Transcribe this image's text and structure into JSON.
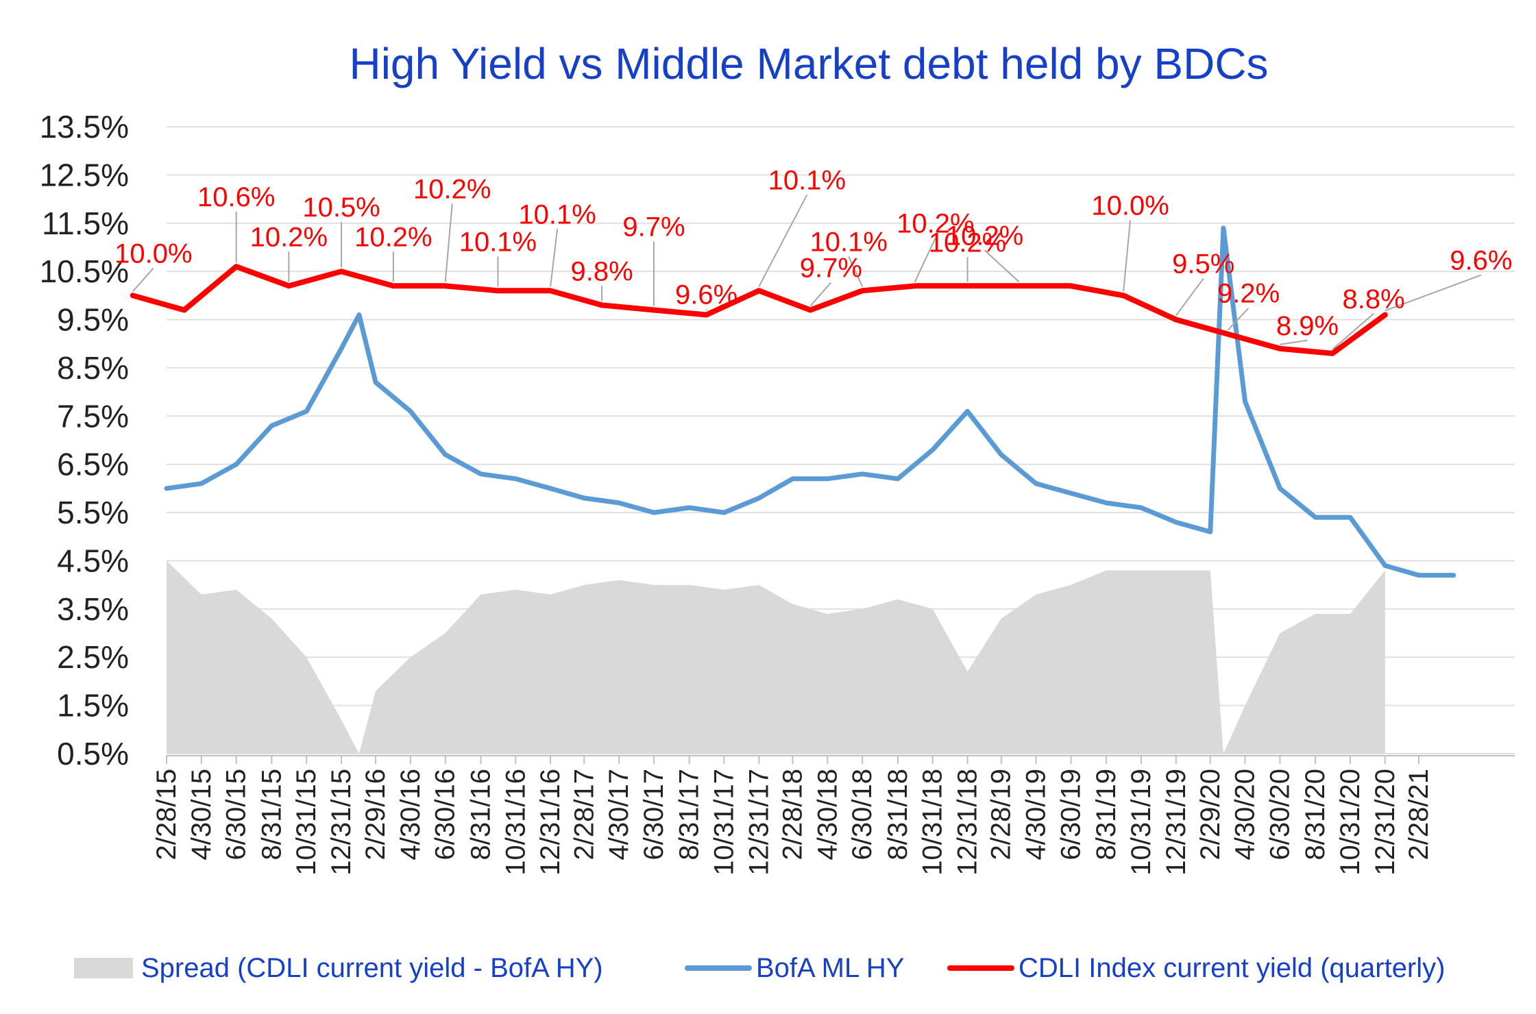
{
  "chart_data": {
    "type": "line",
    "title": "High Yield  vs  Middle Market debt held by BDCs",
    "xlabel": "",
    "ylabel": "",
    "ylim": [
      0.5,
      13.5
    ],
    "y_ticks": [
      "13.5%",
      "12.5%",
      "11.5%",
      "10.5%",
      "9.5%",
      "8.5%",
      "7.5%",
      "6.5%",
      "5.5%",
      "4.5%",
      "3.5%",
      "2.5%",
      "1.5%",
      "0.5%"
    ],
    "x_ticks": [
      "2/28/15",
      "4/30/15",
      "6/30/15",
      "8/31/15",
      "10/31/15",
      "12/31/15",
      "2/29/16",
      "4/30/16",
      "6/30/16",
      "8/31/16",
      "10/31/16",
      "12/31/16",
      "2/28/17",
      "4/30/17",
      "6/30/17",
      "8/31/17",
      "10/31/17",
      "12/31/17",
      "2/28/18",
      "4/30/18",
      "6/30/18",
      "8/31/18",
      "10/31/18",
      "12/31/18",
      "2/28/19",
      "4/30/19",
      "6/30/19",
      "8/31/19",
      "10/31/19",
      "12/31/19",
      "2/29/20",
      "4/30/20",
      "6/30/20",
      "8/31/20",
      "10/31/20",
      "12/31/20",
      "2/28/21"
    ],
    "grid": true,
    "legend_position": "bottom",
    "series": [
      {
        "name": "Spread (CDLI current yield - BofA HY)",
        "type": "area",
        "color": "#d9d9d9",
        "x": [
          "2/28/15",
          "4/30/15",
          "6/30/15",
          "8/31/15",
          "10/31/15",
          "12/31/15",
          "1/31/16",
          "2/29/16",
          "4/30/16",
          "6/30/16",
          "8/31/16",
          "10/31/16",
          "12/31/16",
          "2/28/17",
          "4/30/17",
          "6/30/17",
          "8/31/17",
          "10/31/17",
          "12/31/17",
          "2/28/18",
          "4/30/18",
          "6/30/18",
          "8/31/18",
          "10/31/18",
          "12/31/18",
          "2/28/19",
          "4/30/19",
          "6/30/19",
          "8/31/19",
          "10/31/19",
          "12/31/19",
          "2/29/20",
          "3/23/20",
          "4/30/20",
          "6/30/20",
          "8/31/20",
          "10/31/20",
          "12/31/20"
        ],
        "values": [
          4.5,
          3.8,
          3.9,
          3.3,
          2.5,
          1.2,
          0.5,
          1.8,
          2.5,
          3.0,
          3.8,
          3.9,
          3.8,
          4.0,
          4.1,
          4.0,
          4.0,
          3.9,
          4.0,
          3.6,
          3.4,
          3.5,
          3.7,
          3.5,
          2.2,
          3.3,
          3.8,
          4.0,
          4.3,
          4.3,
          4.3,
          4.3,
          0.5,
          1.5,
          3.0,
          3.4,
          3.4,
          4.3
        ]
      },
      {
        "name": "BofA ML HY",
        "type": "line",
        "color": "#5b9bd5",
        "x": [
          "2/28/15",
          "4/30/15",
          "6/30/15",
          "8/31/15",
          "10/31/15",
          "12/31/15",
          "1/31/16",
          "2/29/16",
          "4/30/16",
          "6/30/16",
          "8/31/16",
          "10/31/16",
          "12/31/16",
          "2/28/17",
          "4/30/17",
          "6/30/17",
          "8/31/17",
          "10/31/17",
          "12/31/17",
          "2/28/18",
          "4/30/18",
          "6/30/18",
          "8/31/18",
          "10/31/18",
          "12/31/18",
          "2/28/19",
          "4/30/19",
          "6/30/19",
          "8/31/19",
          "10/31/19",
          "12/31/19",
          "2/29/20",
          "3/23/20",
          "4/30/20",
          "6/30/20",
          "8/31/20",
          "10/31/20",
          "12/31/20",
          "2/28/21",
          "4/30/21"
        ],
        "values": [
          6.0,
          6.1,
          6.5,
          7.3,
          7.6,
          8.9,
          9.6,
          8.2,
          7.6,
          6.7,
          6.3,
          6.2,
          6.0,
          5.8,
          5.7,
          5.5,
          5.6,
          5.5,
          5.8,
          6.2,
          6.2,
          6.3,
          6.2,
          6.8,
          7.6,
          6.7,
          6.1,
          5.9,
          5.7,
          5.6,
          5.3,
          5.1,
          11.4,
          7.8,
          6.0,
          5.4,
          5.4,
          4.4,
          4.2,
          4.2
        ]
      },
      {
        "name": "CDLI Index current yield (quarterly)",
        "type": "line",
        "color": "#ff0000",
        "x": [
          "12/31/14",
          "3/31/15",
          "6/30/15",
          "9/30/15",
          "12/31/15",
          "3/31/16",
          "6/30/16",
          "9/30/16",
          "12/31/16",
          "3/31/17",
          "6/30/17",
          "9/30/17",
          "12/31/17",
          "3/31/18",
          "6/30/18",
          "9/30/18",
          "12/31/18",
          "3/31/19",
          "6/30/19",
          "9/30/19",
          "12/31/19",
          "3/31/20",
          "6/30/20",
          "9/30/20",
          "12/31/20"
        ],
        "values": [
          10.0,
          9.7,
          10.6,
          10.2,
          10.5,
          10.2,
          10.2,
          10.1,
          10.1,
          9.8,
          9.7,
          9.6,
          10.1,
          9.7,
          10.1,
          10.2,
          10.2,
          10.2,
          10.2,
          10.0,
          9.5,
          9.2,
          8.9,
          8.8,
          9.6
        ],
        "data_labels": [
          "10.0%",
          "",
          "10.6%",
          "10.2%",
          "10.5%",
          "10.2%",
          "10.2%",
          "10.1%",
          "10.1%",
          "9.8%",
          "9.7%",
          "9.6%",
          "10.1%",
          "9.7%",
          "10.1%",
          "10.2%",
          "10.2%",
          "10.2%",
          "",
          "10.0%",
          "9.5%",
          "9.2%",
          "8.9%",
          "8.8%",
          "9.6%"
        ]
      }
    ]
  }
}
